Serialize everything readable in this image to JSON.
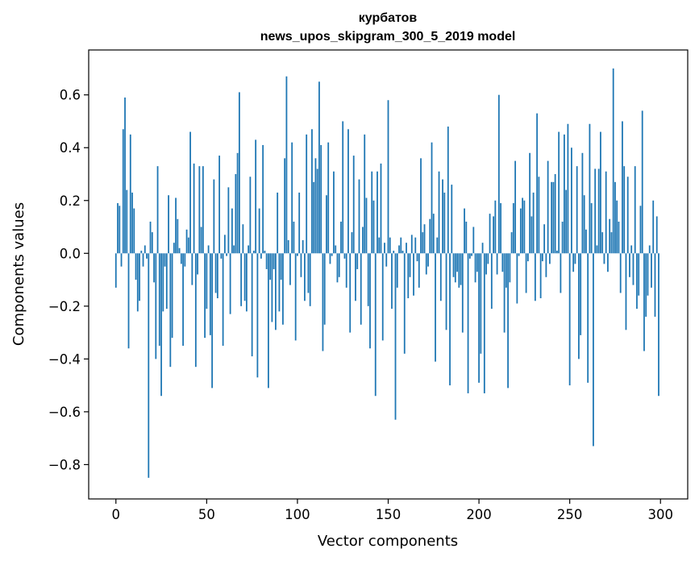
{
  "chart_data": {
    "type": "bar",
    "title": "курбатов",
    "subtitle": "news_upos_skipgram_300_5_2019 model",
    "xlabel": "Vector components",
    "ylabel": "Components values",
    "xlim": [
      -15,
      315
    ],
    "ylim": [
      -0.93,
      0.77
    ],
    "xticks": [
      0,
      50,
      100,
      150,
      200,
      250,
      300
    ],
    "xtick_labels": [
      "0",
      "50",
      "100",
      "150",
      "200",
      "250",
      "300"
    ],
    "yticks": [
      -0.8,
      -0.6,
      -0.4,
      -0.2,
      0.0,
      0.2,
      0.4,
      0.6
    ],
    "ytick_labels": [
      "−0.8",
      "−0.6",
      "−0.4",
      "−0.2",
      "0.0",
      "0.2",
      "0.4",
      "0.6"
    ],
    "grid": false,
    "bar_color": "#1f77b4",
    "x": [
      0,
      1,
      2,
      3,
      4,
      5,
      6,
      7,
      8,
      9,
      10,
      11,
      12,
      13,
      14,
      15,
      16,
      17,
      18,
      19,
      20,
      21,
      22,
      23,
      24,
      25,
      26,
      27,
      28,
      29,
      30,
      31,
      32,
      33,
      34,
      35,
      36,
      37,
      38,
      39,
      40,
      41,
      42,
      43,
      44,
      45,
      46,
      47,
      48,
      49,
      50,
      51,
      52,
      53,
      54,
      55,
      56,
      57,
      58,
      59,
      60,
      61,
      62,
      63,
      64,
      65,
      66,
      67,
      68,
      69,
      70,
      71,
      72,
      73,
      74,
      75,
      76,
      77,
      78,
      79,
      80,
      81,
      82,
      83,
      84,
      85,
      86,
      87,
      88,
      89,
      90,
      91,
      92,
      93,
      94,
      95,
      96,
      97,
      98,
      99,
      100,
      101,
      102,
      103,
      104,
      105,
      106,
      107,
      108,
      109,
      110,
      111,
      112,
      113,
      114,
      115,
      116,
      117,
      118,
      119,
      120,
      121,
      122,
      123,
      124,
      125,
      126,
      127,
      128,
      129,
      130,
      131,
      132,
      133,
      134,
      135,
      136,
      137,
      138,
      139,
      140,
      141,
      142,
      143,
      144,
      145,
      146,
      147,
      148,
      149,
      150,
      151,
      152,
      153,
      154,
      155,
      156,
      157,
      158,
      159,
      160,
      161,
      162,
      163,
      164,
      165,
      166,
      167,
      168,
      169,
      170,
      171,
      172,
      173,
      174,
      175,
      176,
      177,
      178,
      179,
      180,
      181,
      182,
      183,
      184,
      185,
      186,
      187,
      188,
      189,
      190,
      191,
      192,
      193,
      194,
      195,
      196,
      197,
      198,
      199,
      200,
      201,
      202,
      203,
      204,
      205,
      206,
      207,
      208,
      209,
      210,
      211,
      212,
      213,
      214,
      215,
      216,
      217,
      218,
      219,
      220,
      221,
      222,
      223,
      224,
      225,
      226,
      227,
      228,
      229,
      230,
      231,
      232,
      233,
      234,
      235,
      236,
      237,
      238,
      239,
      240,
      241,
      242,
      243,
      244,
      245,
      246,
      247,
      248,
      249,
      250,
      251,
      252,
      253,
      254,
      255,
      256,
      257,
      258,
      259,
      260,
      261,
      262,
      263,
      264,
      265,
      266,
      267,
      268,
      269,
      270,
      271,
      272,
      273,
      274,
      275,
      276,
      277,
      278,
      279,
      280,
      281,
      282,
      283,
      284,
      285,
      286,
      287,
      288,
      289,
      290,
      291,
      292,
      293,
      294,
      295,
      296,
      297,
      298,
      299
    ],
    "values": [
      -0.13,
      0.19,
      0.18,
      -0.05,
      0.47,
      0.59,
      0.24,
      -0.36,
      0.45,
      0.23,
      0.17,
      -0.1,
      -0.22,
      -0.18,
      0.01,
      -0.05,
      0.03,
      -0.02,
      -0.85,
      0.12,
      0.08,
      -0.11,
      -0.4,
      0.33,
      -0.35,
      -0.54,
      -0.22,
      -0.05,
      -0.21,
      0.22,
      -0.43,
      -0.32,
      0.04,
      0.21,
      0.13,
      0.02,
      -0.04,
      -0.35,
      -0.05,
      0.09,
      0.06,
      0.46,
      -0.12,
      0.34,
      -0.43,
      -0.08,
      0.33,
      0.1,
      0.33,
      -0.32,
      -0.21,
      0.03,
      -0.31,
      -0.51,
      0.28,
      -0.15,
      -0.17,
      0.37,
      -0.02,
      -0.35,
      0.07,
      -0.01,
      0.25,
      -0.23,
      0.17,
      0.03,
      0.3,
      0.38,
      0.61,
      -0.2,
      0.11,
      -0.18,
      -0.22,
      0.03,
      0.29,
      -0.39,
      0.01,
      0.43,
      -0.47,
      0.17,
      -0.02,
      0.41,
      0.01,
      -0.06,
      -0.51,
      -0.1,
      -0.26,
      -0.06,
      -0.29,
      0.23,
      -0.22,
      -0.1,
      -0.27,
      0.36,
      0.67,
      0.05,
      -0.12,
      0.42,
      0.12,
      -0.33,
      -0.01,
      0.23,
      -0.09,
      0.05,
      -0.18,
      0.45,
      -0.15,
      -0.2,
      0.47,
      0.27,
      0.36,
      0.32,
      0.65,
      0.41,
      -0.37,
      -0.27,
      0.22,
      0.42,
      -0.04,
      -0.01,
      0.31,
      0.03,
      -0.11,
      -0.09,
      0.12,
      0.5,
      -0.02,
      -0.13,
      0.47,
      -0.3,
      0.08,
      0.37,
      -0.18,
      -0.06,
      0.28,
      -0.27,
      0.1,
      0.45,
      0.21,
      -0.2,
      -0.36,
      0.31,
      0.2,
      -0.54,
      0.31,
      0.06,
      0.34,
      -0.33,
      0.04,
      -0.05,
      0.58,
      0.06,
      -0.21,
      0.01,
      -0.63,
      -0.13,
      0.03,
      0.06,
      0.01,
      -0.38,
      0.04,
      -0.17,
      -0.09,
      0.07,
      -0.16,
      0.06,
      -0.03,
      -0.13,
      0.36,
      0.08,
      0.11,
      -0.08,
      -0.05,
      0.13,
      0.42,
      0.15,
      -0.41,
      0.06,
      0.31,
      -0.18,
      0.28,
      0.23,
      -0.29,
      0.48,
      -0.5,
      0.26,
      -0.09,
      -0.11,
      -0.07,
      -0.13,
      -0.12,
      -0.3,
      0.17,
      0.12,
      -0.53,
      -0.02,
      -0.01,
      0.1,
      -0.11,
      -0.07,
      -0.49,
      -0.38,
      0.04,
      -0.53,
      -0.08,
      -0.04,
      0.15,
      -0.21,
      0.14,
      0.2,
      -0.08,
      0.6,
      0.19,
      -0.07,
      -0.3,
      -0.13,
      -0.51,
      -0.11,
      0.08,
      0.19,
      0.35,
      -0.19,
      -0.01,
      0.17,
      0.21,
      0.2,
      -0.15,
      -0.03,
      0.38,
      0.14,
      0.23,
      -0.18,
      0.53,
      0.29,
      -0.17,
      -0.03,
      0.11,
      -0.09,
      0.35,
      -0.04,
      0.27,
      0.27,
      0.3,
      0.01,
      0.46,
      -0.15,
      0.12,
      0.45,
      0.24,
      0.49,
      -0.5,
      0.4,
      -0.07,
      -0.04,
      0.33,
      -0.4,
      -0.31,
      0.38,
      0.22,
      0.09,
      -0.49,
      0.49,
      0.19,
      -0.73,
      0.32,
      0.03,
      0.32,
      0.46,
      0.08,
      -0.04,
      0.31,
      -0.07,
      0.13,
      0.08,
      0.7,
      0.27,
      0.2,
      0.12,
      -0.15,
      0.5,
      0.33,
      -0.29,
      0.29,
      -0.09,
      0.03,
      -0.12,
      0.33,
      -0.21,
      -0.16,
      0.18,
      0.54,
      -0.37,
      -0.24,
      -0.16,
      0.03,
      -0.13,
      0.2,
      -0.24,
      0.14,
      -0.54
    ]
  }
}
